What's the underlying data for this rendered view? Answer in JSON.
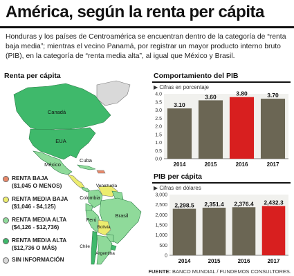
{
  "title": "América, según la renta per cápita",
  "intro": "Honduras y los países de Centroamérica se encuentran dentro de la categoría de “renta baja media”; mientras el vecino Panamá, por registrar un mayor producto interno bruto (PIB), en la categoría de “renta media alta”, al igual que México y Brasil.",
  "map_section": {
    "title": "Renta per cápita",
    "country_labels": {
      "canada": "Canadá",
      "usa": "EUA",
      "mexico": "México",
      "cuba": "Cuba",
      "venezuela": "Venezuela",
      "colombia": "Colombia",
      "brasil": "Brasil",
      "peru": "Perú",
      "bolivia": "Bolivia",
      "chile": "Chile",
      "argentina": "Argentina"
    },
    "legend": [
      {
        "label": "RENTA BAJA",
        "range": "($1,045 O MENOS)",
        "color": "#e8896a"
      },
      {
        "label": "RENTA  MEDIA BAJA",
        "range": "($1,046 - $4,125)",
        "color": "#ecec6e"
      },
      {
        "label": "RENTA MEDIA ALTA",
        "range": "($4,126 - $12,736)",
        "color": "#8fda9a"
      },
      {
        "label": "RENTA MEDIA ALTA",
        "range": "($12,736 O MÁS)",
        "color": "#3fb96b"
      },
      {
        "label": "SIN INFORMACIÓN",
        "range": "",
        "color": "#d9d9d9"
      }
    ]
  },
  "colors": {
    "bar_default": "#6b6654",
    "bar_highlight": "#d81f1f",
    "map_high": "#3fb96b",
    "map_upper_mid": "#8fda9a",
    "map_lower_mid": "#ecec6e",
    "map_low": "#e8896a",
    "chart_bg": "#f1f1ee"
  },
  "chart_data": [
    {
      "type": "bar",
      "title": "Comportamiento del PIB",
      "unit_note": "Cifras en porcentaje",
      "categories": [
        "2014",
        "2015",
        "2016",
        "2017"
      ],
      "values": [
        3.1,
        3.6,
        3.8,
        3.7
      ],
      "value_labels": [
        "3.10",
        "3.60",
        "3.80",
        "3.70"
      ],
      "highlight": "2016",
      "ylim": [
        0,
        4.0
      ],
      "yticks": [
        "0.0",
        "0.5",
        "1.0",
        "1.5",
        "2.0",
        "2.5",
        "3.0",
        "3.5",
        "4.0"
      ],
      "ytick_values": [
        0,
        0.5,
        1.0,
        1.5,
        2.0,
        2.5,
        3.0,
        3.5,
        4.0
      ],
      "grid": false
    },
    {
      "type": "bar",
      "title": "PIB per cápita",
      "unit_note": "Cifras en dólares",
      "categories": [
        "2014",
        "2015",
        "2016",
        "2017"
      ],
      "values": [
        2298.5,
        2351.4,
        2376.4,
        2432.3
      ],
      "value_labels": [
        "2,298.5",
        "2,351.4",
        "2,376.4",
        "2,432.3"
      ],
      "highlight": "2017",
      "ylim": [
        0,
        3000
      ],
      "yticks": [
        "0",
        "500",
        "1,000",
        "1,500",
        "2,000",
        "2,500",
        "3,000"
      ],
      "ytick_values": [
        0,
        500,
        1000,
        1500,
        2000,
        2500,
        3000
      ],
      "grid": false
    }
  ],
  "source": {
    "label": "FUENTE:",
    "text": " BANCO MUNDIAL / FUNDEMOS CONSULTORES."
  }
}
